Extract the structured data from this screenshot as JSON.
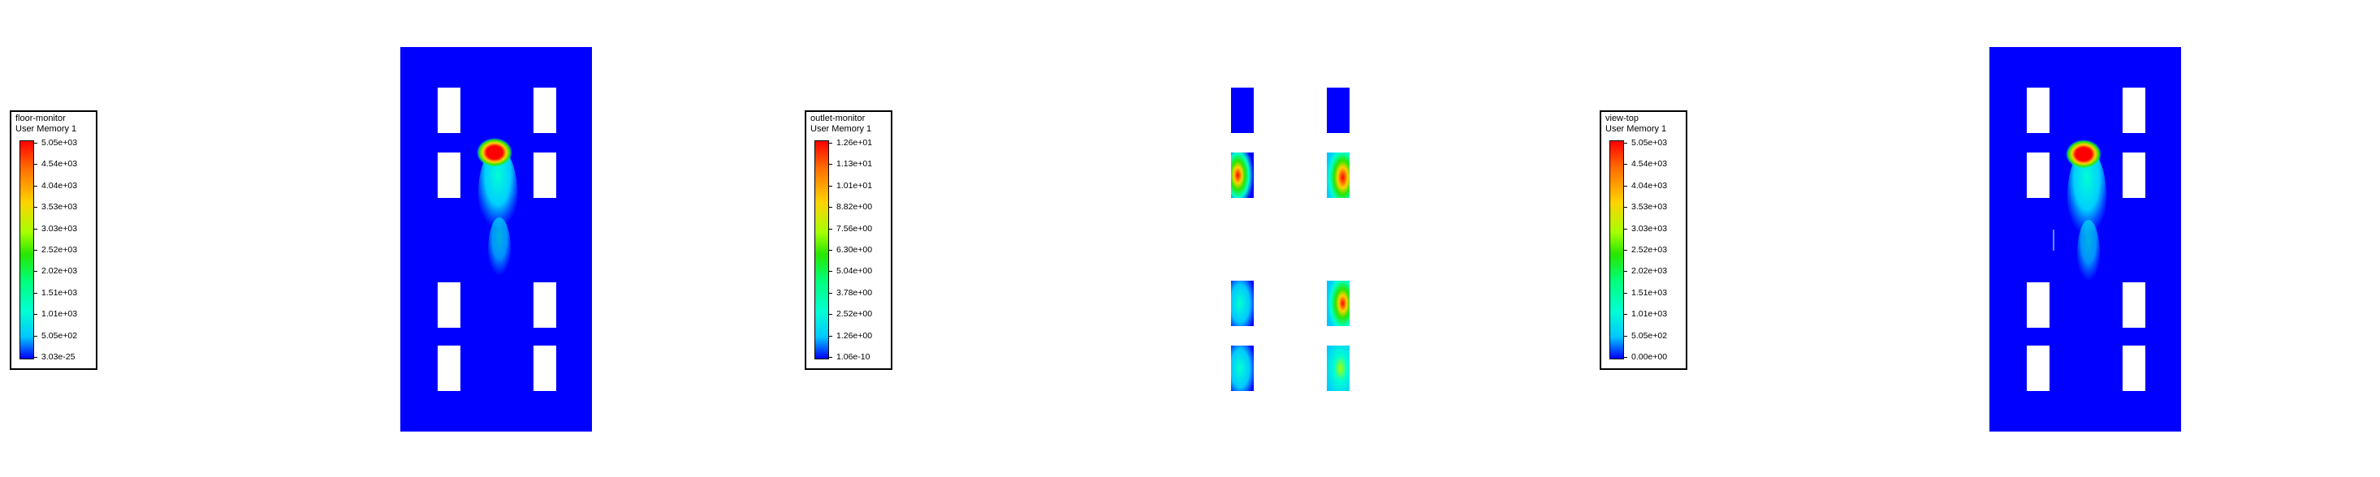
{
  "colors": {
    "domain": "#0000ff",
    "background": "#ffffff",
    "hot": "#ff0000"
  },
  "legends": [
    {
      "title": "floor-monitor",
      "subtitle": "User Memory 1",
      "ticks": [
        "5.05e+03",
        "4.54e+03",
        "4.04e+03",
        "3.53e+03",
        "3.03e+03",
        "2.52e+03",
        "2.02e+03",
        "1.51e+03",
        "1.01e+03",
        "5.05e+02",
        "3.03e-25"
      ]
    },
    {
      "title": "outlet-monitor",
      "subtitle": "User Memory 1",
      "ticks": [
        "1.26e+01",
        "1.13e+01",
        "1.01e+01",
        "8.82e+00",
        "7.56e+00",
        "6.30e+00",
        "5.04e+00",
        "3.78e+00",
        "2.52e+00",
        "1.26e+00",
        "1.06e-10"
      ]
    },
    {
      "title": "view-top",
      "subtitle": "User Memory 1",
      "ticks": [
        "5.05e+03",
        "4.54e+03",
        "4.04e+03",
        "3.53e+03",
        "3.03e+03",
        "2.52e+03",
        "2.02e+03",
        "1.51e+03",
        "1.01e+03",
        "5.05e+02",
        "0.00e+00"
      ]
    }
  ]
}
